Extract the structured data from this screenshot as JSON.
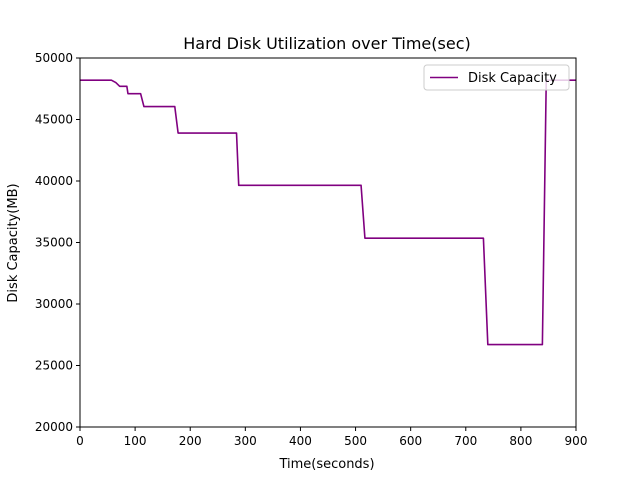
{
  "chart_data": {
    "type": "line",
    "title": "Hard Disk Utilization over Time(sec)",
    "xlabel": "Time(seconds)",
    "ylabel": "Disk Capacity(MB)",
    "xlim": [
      0,
      900
    ],
    "ylim": [
      20000,
      50000
    ],
    "xticks": [
      0,
      100,
      200,
      300,
      400,
      500,
      600,
      700,
      800,
      900
    ],
    "yticks": [
      20000,
      25000,
      30000,
      35000,
      40000,
      45000,
      50000
    ],
    "grid": false,
    "legend": {
      "position": "top-right"
    },
    "series": [
      {
        "name": "Disk Capacity",
        "color": "#800080",
        "x": [
          0,
          57,
          65,
          72,
          85,
          87,
          110,
          116,
          172,
          178,
          284,
          288,
          510,
          517,
          732,
          740,
          839,
          846,
          900
        ],
        "y": [
          48200,
          48200,
          48000,
          47700,
          47700,
          47100,
          47100,
          46050,
          46050,
          43900,
          43900,
          39650,
          39650,
          35350,
          35350,
          26700,
          26700,
          48200,
          48200
        ]
      }
    ]
  }
}
